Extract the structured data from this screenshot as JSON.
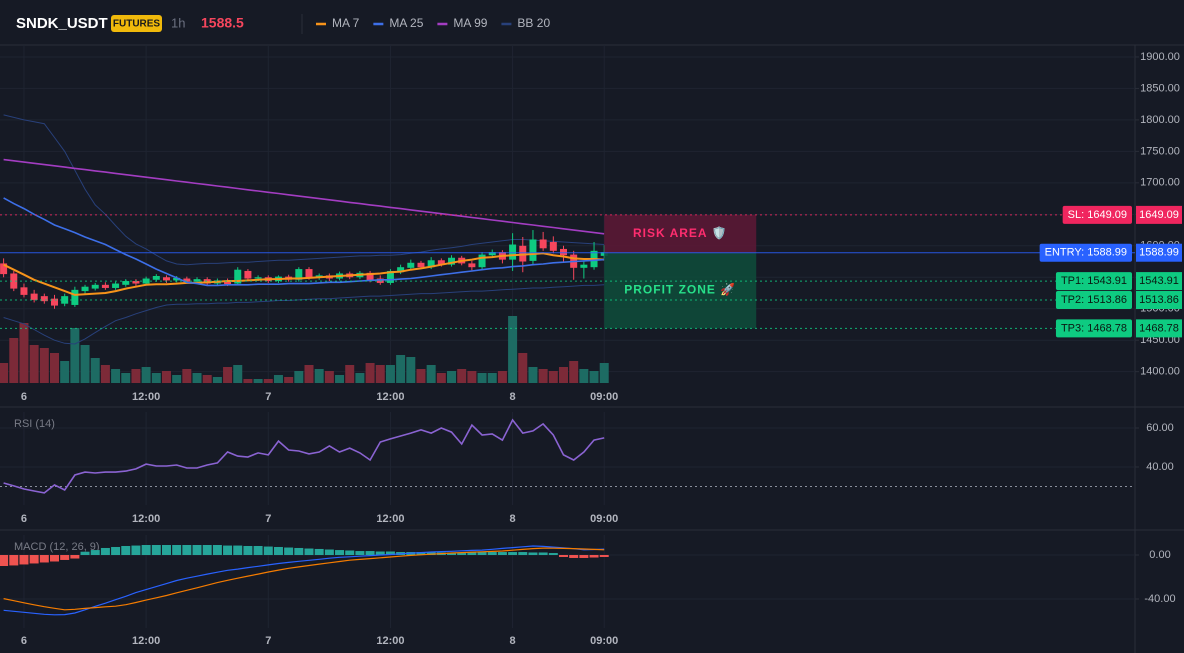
{
  "header": {
    "symbol": "SNDK_USDT",
    "badge": "FUTURES",
    "interval": "1h",
    "price": 1588.5
  },
  "chart_data": [
    {
      "type": "candlestick",
      "categories": [
        null,
        null,
        "6",
        null,
        null,
        null,
        null,
        null,
        null,
        null,
        null,
        null,
        null,
        null,
        "12:00",
        null,
        null,
        null,
        null,
        null,
        null,
        null,
        null,
        null,
        null,
        null,
        "7",
        null,
        null,
        null,
        null,
        null,
        null,
        null,
        null,
        null,
        null,
        null,
        "12:00",
        null,
        null,
        null,
        null,
        null,
        null,
        null,
        null,
        null,
        null,
        null,
        "8",
        null,
        null,
        null,
        null,
        null,
        null,
        null,
        null,
        "09:00"
      ],
      "open": [
        1572,
        1556,
        1534,
        1524,
        1520,
        1516,
        1508,
        1506,
        1528,
        1532,
        1538,
        1533,
        1538,
        1544,
        1540,
        1546,
        1550,
        1545,
        1548,
        1543,
        1547,
        1540,
        1545,
        1540,
        1560,
        1548,
        1550,
        1544,
        1551,
        1546,
        1563,
        1549,
        1553,
        1548,
        1556,
        1550,
        1557,
        1548,
        1541,
        1558,
        1565,
        1573,
        1566,
        1577,
        1570,
        1581,
        1572,
        1566,
        1585,
        1590,
        1578,
        1600,
        1576,
        1610,
        1606,
        1595,
        1586,
        1565,
        1566,
        1584
      ],
      "high": [
        1580,
        1560,
        1540,
        1530,
        1524,
        1522,
        1524,
        1535,
        1538,
        1541,
        1542,
        1543,
        1547,
        1547,
        1551,
        1555,
        1553,
        1552,
        1551,
        1550,
        1550,
        1548,
        1548,
        1566,
        1563,
        1553,
        1553,
        1553,
        1554,
        1566,
        1566,
        1556,
        1556,
        1559,
        1559,
        1560,
        1560,
        1553,
        1563,
        1570,
        1578,
        1576,
        1582,
        1580,
        1585,
        1584,
        1576,
        1590,
        1594,
        1593,
        1620,
        1614,
        1625,
        1622,
        1615,
        1600,
        1592,
        1575,
        1606,
        1601
      ],
      "low": [
        1550,
        1528,
        1518,
        1510,
        1508,
        1500,
        1504,
        1503,
        1524,
        1529,
        1530,
        1530,
        1535,
        1536,
        1537,
        1543,
        1541,
        1542,
        1540,
        1540,
        1537,
        1537,
        1536,
        1537,
        1545,
        1544,
        1541,
        1541,
        1543,
        1543,
        1546,
        1546,
        1544,
        1545,
        1547,
        1547,
        1542,
        1538,
        1538,
        1555,
        1562,
        1563,
        1563,
        1567,
        1567,
        1569,
        1561,
        1563,
        1581,
        1572,
        1560,
        1558,
        1570,
        1592,
        1588,
        1575,
        1546,
        1548,
        1562,
        1580
      ],
      "close": [
        1555,
        1532,
        1522,
        1514,
        1512,
        1505,
        1520,
        1530,
        1535,
        1538,
        1533,
        1540,
        1544,
        1540,
        1548,
        1552,
        1545,
        1549,
        1543,
        1547,
        1540,
        1545,
        1539,
        1562,
        1548,
        1550,
        1544,
        1551,
        1546,
        1563,
        1549,
        1553,
        1548,
        1556,
        1550,
        1557,
        1545,
        1541,
        1560,
        1566,
        1573,
        1566,
        1577,
        1570,
        1581,
        1572,
        1566,
        1586,
        1590,
        1578,
        1602,
        1575,
        1610,
        1596,
        1592,
        1585,
        1565,
        1570,
        1592,
        1590
      ],
      "up_color": "#0ecb81",
      "down_color": "#f6465d",
      "volume": [
        20,
        45,
        60,
        38,
        35,
        30,
        22,
        55,
        38,
        25,
        18,
        14,
        10,
        14,
        16,
        10,
        12,
        8,
        14,
        10,
        8,
        6,
        16,
        18,
        4,
        4,
        4,
        8,
        6,
        12,
        18,
        14,
        12,
        8,
        18,
        10,
        20,
        18,
        18,
        28,
        26,
        14,
        18,
        10,
        12,
        14,
        12,
        10,
        10,
        12,
        67,
        30,
        16,
        14,
        12,
        16,
        22,
        14,
        12,
        20
      ],
      "volume_ylim": [
        0,
        100
      ],
      "volume_up_color": "#1d6b63",
      "volume_down_color": "#7c2a38",
      "series": [
        {
          "name": "MA 7",
          "color": "#f7931a",
          "values": [
            1570,
            1562,
            1554,
            1546,
            1540,
            1534,
            1528,
            1522,
            1523,
            1524,
            1525,
            1528,
            1532,
            1535,
            1538,
            1539,
            1539,
            1540,
            1541,
            1541,
            1542,
            1543,
            1544,
            1544,
            1545,
            1546,
            1547,
            1547,
            1548,
            1548,
            1549,
            1550,
            1551,
            1552,
            1553,
            1554,
            1555,
            1556,
            1558,
            1559,
            1562,
            1564,
            1567,
            1570,
            1573,
            1576,
            1578,
            1581,
            1582,
            1584,
            1585,
            1586,
            1587,
            1588,
            1585,
            1583,
            1580,
            1579,
            1579,
            1578
          ]
        },
        {
          "name": "MA 25",
          "color": "#3d6fe8",
          "values": [
            1676,
            1667,
            1659,
            1650,
            1642,
            1633,
            1627,
            1621,
            1614,
            1608,
            1602,
            1594,
            1586,
            1579,
            1571,
            1563,
            1556,
            1549,
            1542,
            1540,
            1537,
            1537,
            1538,
            1538,
            1538,
            1539,
            1539,
            1539,
            1540,
            1540,
            1540,
            1541,
            1542,
            1542,
            1543,
            1544,
            1545,
            1546,
            1546,
            1547,
            1548,
            1550,
            1552,
            1554,
            1556,
            1558,
            1560,
            1562,
            1564,
            1565,
            1567,
            1568,
            1570,
            1571,
            1573,
            1574,
            1575,
            1576,
            1577,
            1578
          ]
        },
        {
          "name": "MA 99",
          "color": "#a33dc2",
          "values": [
            1737,
            1735,
            1733,
            1731,
            1729,
            1727,
            1725,
            1723,
            1721,
            1719,
            1717,
            1715,
            1713,
            1711,
            1709,
            1707,
            1705,
            1703,
            1701,
            1699,
            1697,
            1695,
            1693,
            1691,
            1689,
            1687,
            1685,
            1683,
            1681,
            1679,
            1677,
            1675,
            1673,
            1671,
            1669,
            1667,
            1665,
            1663,
            1661,
            1659,
            1657,
            1655,
            1653,
            1651,
            1649,
            1647,
            1645,
            1643,
            1641,
            1639,
            1637,
            1635,
            1633,
            1631,
            1629,
            1627,
            1625,
            1623,
            1621,
            1619
          ]
        },
        {
          "name": "BB 20",
          "color": "#28407a",
          "upper": [
            1808,
            1804,
            1800,
            1797,
            1794,
            1772,
            1750,
            1720,
            1690,
            1665,
            1650,
            1632,
            1615,
            1603,
            1595,
            1585,
            1576,
            1571,
            1570,
            1571,
            1572,
            1572,
            1573,
            1574,
            1574,
            1575,
            1576,
            1577,
            1577,
            1578,
            1579,
            1580,
            1581,
            1582,
            1583,
            1584,
            1584,
            1585,
            1585,
            1586,
            1588,
            1590,
            1593,
            1595,
            1597,
            1599,
            1602,
            1604,
            1606,
            1608,
            1610,
            1610,
            1609,
            1608,
            1607,
            1606,
            1605,
            1604,
            1603,
            1602
          ],
          "lower": [
            1486,
            1481,
            1476,
            1467,
            1458,
            1450,
            1445,
            1444,
            1452,
            1462,
            1472,
            1481,
            1486,
            1492,
            1497,
            1502,
            1506,
            1507,
            1507,
            1508,
            1508,
            1509,
            1509,
            1510,
            1510,
            1511,
            1512,
            1513,
            1513,
            1514,
            1515,
            1516,
            1516,
            1517,
            1518,
            1519,
            1520,
            1520,
            1521,
            1522,
            1523,
            1524,
            1524,
            1525,
            1526,
            1527,
            1528,
            1528,
            1529,
            1530,
            1531,
            1532,
            1533,
            1533,
            1534,
            1535,
            1536,
            1537,
            1537,
            1538
          ]
        }
      ],
      "ylim": [
        1382,
        1919
      ],
      "yticks": [
        {
          "value": 1400,
          "label": "1400.00"
        },
        {
          "value": 1450,
          "label": "1450.00"
        },
        {
          "value": 1500,
          "label": "1500.00"
        },
        {
          "value": 1550,
          "label": "1550.00"
        },
        {
          "value": 1600,
          "label": "1600.00"
        },
        {
          "value": 1650,
          "label": "1650.00"
        },
        {
          "value": 1700,
          "label": "1700.00"
        },
        {
          "value": 1750,
          "label": "1750.00"
        },
        {
          "value": 1800,
          "label": "1800.00"
        },
        {
          "value": 1850,
          "label": "1850.00"
        },
        {
          "value": 1900,
          "label": "1900.00"
        }
      ],
      "grid": true,
      "levels": [
        {
          "label": "SL: 1649.09",
          "value": 1649.09,
          "color": "#f0265f",
          "text_color": "#ffffff",
          "style": "dotted"
        },
        {
          "label": "ENTRY: 1588.99",
          "value": 1588.99,
          "color": "#2962ff",
          "text_color": "#ffffff",
          "style": "solid"
        },
        {
          "label": "TP1: 1543.91",
          "value": 1543.91,
          "color": "#0ecb81",
          "text_color": "#0b1a12",
          "style": "dotted"
        },
        {
          "label": "TP2: 1513.86",
          "value": 1513.86,
          "color": "#0ecb81",
          "text_color": "#0b1a12",
          "style": "dotted"
        },
        {
          "label": "TP3: 1468.78",
          "value": 1468.78,
          "color": "#0ecb81",
          "text_color": "#0b1a12",
          "style": "dotted"
        }
      ],
      "zones": [
        {
          "label": "RISK AREA 🛡️",
          "color": "#ff2d6f",
          "fill": "#5a1835"
        },
        {
          "label": "PROFIT ZONE 🚀",
          "color": "#27e08a",
          "fill": "#0e4a3a"
        }
      ]
    },
    {
      "type": "line",
      "title": "RSI (14)",
      "categories": [
        null,
        null,
        "6",
        null,
        null,
        null,
        null,
        null,
        null,
        null,
        null,
        null,
        null,
        null,
        "12:00",
        null,
        null,
        null,
        null,
        null,
        null,
        null,
        null,
        null,
        null,
        null,
        "7",
        null,
        null,
        null,
        null,
        null,
        null,
        null,
        null,
        null,
        null,
        null,
        "12:00",
        null,
        null,
        null,
        null,
        null,
        null,
        null,
        null,
        null,
        null,
        null,
        "8",
        null,
        null,
        null,
        null,
        null,
        null,
        null,
        null,
        "09:00"
      ],
      "values": [
        31.8,
        30.3,
        28.7,
        27.7,
        26.7,
        30.8,
        28.2,
        35.9,
        37.4,
        36.9,
        37.4,
        37.4,
        37.9,
        39.0,
        41.5,
        40.5,
        40.5,
        41.0,
        39.5,
        39.5,
        41.0,
        42.1,
        47.7,
        45.6,
        45.1,
        47.2,
        46.2,
        53.3,
        48.7,
        48.2,
        46.7,
        47.7,
        50.8,
        47.7,
        49.7,
        47.2,
        43.6,
        52.8,
        54.4,
        55.9,
        57.4,
        59.0,
        57.4,
        60.0,
        57.9,
        51.8,
        61.5,
        56.4,
        56.9,
        53.8,
        64.1,
        57.4,
        58.5,
        62.1,
        56.4,
        46.2,
        43.6,
        47.7,
        53.8,
        54.9
      ],
      "color": "#8a63d2",
      "hline": 30,
      "ylim": [
        20.5,
        68.2
      ],
      "yticks": [
        {
          "value": 40,
          "label": "40.00"
        },
        {
          "value": 60,
          "label": "60.00"
        }
      ],
      "grid": true
    },
    {
      "type": "macd",
      "title": "MACD (12, 26, 9)",
      "categories": [
        null,
        null,
        "6",
        null,
        null,
        null,
        null,
        null,
        null,
        null,
        null,
        null,
        null,
        null,
        "12:00",
        null,
        null,
        null,
        null,
        null,
        null,
        null,
        null,
        null,
        null,
        null,
        "7",
        null,
        null,
        null,
        null,
        null,
        null,
        null,
        null,
        null,
        null,
        null,
        "12:00",
        null,
        null,
        null,
        null,
        null,
        null,
        null,
        null,
        null,
        null,
        null,
        "8",
        null,
        null,
        null,
        null,
        null,
        null,
        null,
        null,
        "09:00"
      ],
      "histogram": [
        -10,
        -9.5,
        -8.6,
        -7.7,
        -6.8,
        -5.9,
        -4.5,
        -3.2,
        3,
        4.5,
        6.4,
        7.3,
        8.2,
        8.6,
        9.1,
        9.1,
        9.1,
        9.1,
        9.1,
        9.1,
        9.1,
        9.1,
        8.6,
        8.6,
        8.2,
        8.2,
        7.7,
        7.3,
        6.8,
        6.4,
        5.9,
        5.5,
        5,
        4.5,
        4.1,
        3.6,
        3.6,
        3.2,
        3.2,
        2.7,
        2.7,
        2.7,
        2.7,
        2.3,
        2.3,
        2.3,
        2.3,
        2.7,
        2.7,
        2.7,
        2.7,
        2.7,
        2.3,
        2.3,
        1.8,
        -1.8,
        -2.7,
        -2.7,
        -2.3,
        -1.8
      ],
      "macd": [
        -50.3,
        -51.2,
        -52.1,
        -53,
        -53.9,
        -54.4,
        -54.2,
        -52.8,
        -49.8,
        -46.7,
        -43.8,
        -40.7,
        -37.6,
        -34.2,
        -31.5,
        -28.7,
        -26,
        -23.2,
        -21.1,
        -19.3,
        -17.4,
        -15.6,
        -13.9,
        -12.8,
        -11.5,
        -10.3,
        -9,
        -7.7,
        -6.7,
        -5.7,
        -4.8,
        -3.9,
        -2.9,
        -2.1,
        -1.6,
        -1.1,
        -0.5,
        0,
        0.5,
        1.1,
        1.6,
        2.2,
        2.7,
        3.1,
        3.4,
        3.8,
        4.2,
        4.5,
        5.2,
        6,
        6.7,
        7.5,
        8.2,
        7.8,
        7.2,
        6.6,
        5.7,
        4.7,
        5,
        5.4
      ],
      "signal": [
        -39.7,
        -41.6,
        -43.5,
        -45.3,
        -47,
        -48.5,
        -49.8,
        -49.4,
        -48.6,
        -47.8,
        -47.1,
        -46.6,
        -45.2,
        -43.2,
        -41,
        -38.9,
        -36.8,
        -34.4,
        -32.1,
        -29.8,
        -27.5,
        -25.1,
        -23,
        -21.1,
        -19.2,
        -17.4,
        -15.5,
        -13.7,
        -12.1,
        -10.8,
        -9.5,
        -8.3,
        -7.1,
        -5.9,
        -4.7,
        -4,
        -3.3,
        -2.5,
        -1.8,
        -1.1,
        -0.4,
        0.2,
        0.7,
        1.3,
        1.8,
        2.2,
        2.6,
        2.9,
        3.3,
        3.6,
        4.4,
        5.1,
        5.8,
        6.3,
        6.2,
        6,
        5.8,
        5.5,
        5.1,
        4.7
      ],
      "up_color": "#26a69a",
      "down_color": "#ef5350",
      "macd_color": "#2962ff",
      "signal_color": "#f57c00",
      "ylim": [
        -66.4,
        18.2
      ],
      "yticks": [
        {
          "value": -40,
          "label": "-40.00"
        },
        {
          "value": 0,
          "label": "0.00"
        }
      ],
      "grid": true
    }
  ]
}
